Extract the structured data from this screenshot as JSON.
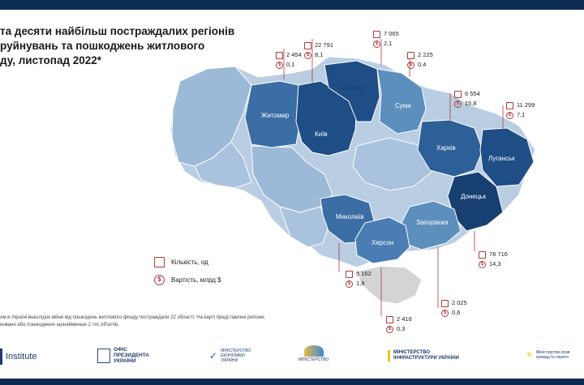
{
  "title_lines": [
    "та десяти найбільш постраждалих регіонів",
    "руйнувань та пошкоджень житлового",
    "ду, листопад 2022*"
  ],
  "legend": {
    "count_label": "Кількість, од",
    "cost_label": "Вартість, млрд $"
  },
  "regions": {
    "zhytomyr": "Житомир",
    "kyiv": "Київ",
    "chernihiv": "Чернігів",
    "sumy": "Суми",
    "kharkiv": "Харків",
    "luhansk": "Луганськ",
    "donetsk": "Донецьк",
    "mykolaiv": "Миколаїв",
    "kherson": "Херсон",
    "zaporizhzhia": "Запоріжжя"
  },
  "stats": {
    "zhytomyr": {
      "count": "2 454",
      "cost": "0,1"
    },
    "kyiv": {
      "count": "22 791",
      "cost": "8,1"
    },
    "chernihiv": {
      "count": "7 065",
      "cost": "2,1"
    },
    "sumy": {
      "count": "2 225",
      "cost": "0,4"
    },
    "kharkiv": {
      "count": "6 554",
      "cost": "15,8"
    },
    "luhansk": {
      "count": "11 299",
      "cost": "7,1"
    },
    "donetsk": {
      "count": "78 716",
      "cost": "14,3"
    },
    "mykolaiv": {
      "count": "5 162",
      "cost": "1,9"
    },
    "kherson": {
      "count": "2 416",
      "cost": "0,3"
    },
    "zaporizhzhia": {
      "count": "2 025",
      "cost": "0,6"
    }
  },
  "footnote_lines": [
    "ом в Україні внаслідок війни від пошкодянь житлового фонду постраждали 22 області. На карті представлені регіони,",
    "новано або пошкоджено щонайменше 2 тис об'єктів."
  ],
  "logos": {
    "institute": "Institute",
    "office_line1": "ОФІС",
    "office_line2": "ПРЕЗИДЕНТА",
    "office_line3": "УКРАЇНИ",
    "economy_line1": "МІНІСТЕРСТВО",
    "economy_line2": "ЕКОНОМІКИ",
    "economy_line3": "УКРАЇНИ",
    "ministry_mid": "МІНІСТЕРСТВО",
    "infra_line1": "МІНІСТЕРСТВО",
    "infra_line2": "ІНФРАСТРУКТУРИ УКРАЇНИ",
    "regional_line1": "Міністерство розв",
    "regional_line2": "громад та терито"
  },
  "colors": {
    "dark": "#1f4e87",
    "mid": "#3b6ea5",
    "medium": "#5d8fbd",
    "light": "#9db9d8",
    "pale": "#b9cde3",
    "crimea": "#d4d4d4",
    "accent_red": "#b23a3a"
  }
}
